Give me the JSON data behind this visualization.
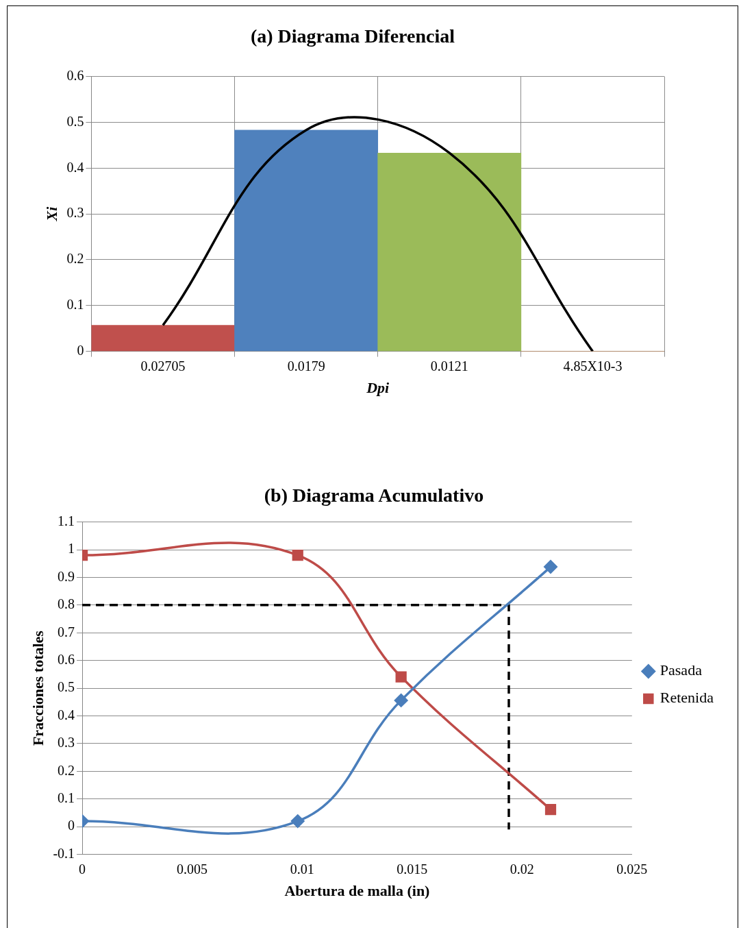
{
  "chart_data": [
    {
      "type": "bar",
      "title": "(a) Diagrama Diferencial",
      "xlabel": "Dpi",
      "ylabel": "Xi",
      "categories": [
        "0.02705",
        "0.0179",
        "0.0121",
        "4.85X10-3"
      ],
      "series": [
        {
          "type": "bar",
          "colors": [
            "#c0504d",
            "#4f81bd",
            "#9bbb59",
            "#f79646"
          ],
          "values": [
            0.057,
            0.483,
            0.433,
            0
          ]
        },
        {
          "type": "line",
          "color": "#000000",
          "marker": "none",
          "values": [
            0.057,
            0.483,
            0.433,
            0
          ]
        }
      ],
      "ylim": [
        0,
        0.6
      ],
      "yticks": [
        0,
        0.1,
        0.2,
        0.3,
        0.4,
        0.5,
        0.6
      ],
      "grid": true,
      "legend": false
    },
    {
      "type": "line",
      "title": "(b) Diagrama Acumulativo",
      "xlabel": "Abertura de malla (in)",
      "ylabel": "Fracciones totales",
      "series": [
        {
          "name": "Pasada",
          "color": "#4a7ebb",
          "marker": "diamond",
          "x": [
            0,
            0.0098,
            0.0145,
            0.0213
          ],
          "values": [
            0.02,
            0.02,
            0.456,
            0.938
          ]
        },
        {
          "name": "Retenida",
          "color": "#be4b48",
          "marker": "square",
          "x": [
            0,
            0.0098,
            0.0145,
            0.0213
          ],
          "values": [
            0.98,
            0.98,
            0.541,
            0.062
          ]
        },
        {
          "color": "#000000",
          "marker": "none",
          "line_style": "dashed",
          "x": [
            0,
            0.0194,
            0.0194
          ],
          "values": [
            0.8,
            0.8,
            -0.01
          ]
        }
      ],
      "xlim": [
        0,
        0.025
      ],
      "xticks": [
        0,
        0.005,
        0.01,
        0.015,
        0.02,
        0.025
      ],
      "ylim": [
        -0.1,
        1.1
      ],
      "yticks": [
        -0.1,
        0,
        0.1,
        0.2,
        0.3,
        0.4,
        0.5,
        0.6,
        0.7,
        0.8,
        0.9,
        1,
        1.1
      ],
      "grid": "y",
      "legend": "right"
    }
  ]
}
